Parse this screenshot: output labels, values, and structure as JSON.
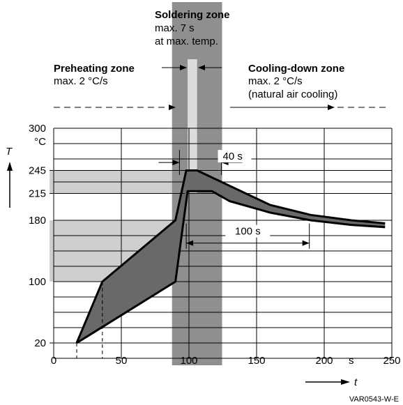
{
  "chart_data": {
    "type": "area",
    "x_axis": {
      "label": "t",
      "unit": "s",
      "range": [
        0,
        250
      ],
      "ticks": [
        "0",
        "50",
        "100",
        "150",
        "200",
        "250"
      ]
    },
    "y_axis": {
      "label": "T",
      "unit": "°C",
      "range": [
        0,
        300
      ],
      "ticks": [
        "20",
        "100",
        "180",
        "215",
        "245",
        "300"
      ]
    },
    "grid": true,
    "zones": [
      {
        "title": "Preheating zone",
        "lines": [
          "max. 2 °C/s"
        ]
      },
      {
        "title": "Soldering zone",
        "lines": [
          "max. 7 s",
          "at max. temp."
        ]
      },
      {
        "title": "Cooling-down zone",
        "lines": [
          "max. 2 °C/s",
          "(natural air cooling)"
        ]
      }
    ],
    "upper_profile": [
      [
        17,
        20
      ],
      [
        36,
        100
      ],
      [
        90,
        180
      ],
      [
        98,
        245
      ],
      [
        106,
        245
      ],
      [
        130,
        225
      ],
      [
        160,
        200
      ],
      [
        190,
        187
      ],
      [
        220,
        180
      ],
      [
        245,
        176
      ]
    ],
    "lower_profile": [
      [
        17,
        20
      ],
      [
        90,
        100
      ],
      [
        99,
        218
      ],
      [
        117,
        218
      ],
      [
        130,
        205
      ],
      [
        160,
        190
      ],
      [
        190,
        180
      ],
      [
        220,
        174
      ],
      [
        245,
        171
      ]
    ],
    "bands": [
      {
        "y_from": 215,
        "y_to": 245,
        "x_from": -3,
        "x_to": 100
      },
      {
        "y_from": 100,
        "y_to": 180,
        "x_from": -3,
        "x_to": 90
      }
    ],
    "annotations": [
      {
        "text": "40 s",
        "x_from": 93,
        "x_to": 124,
        "y": 259
      },
      {
        "text": "100 s",
        "x_from": 98,
        "x_to": 189,
        "y": 163
      }
    ]
  },
  "figure_code": "VAR0543-W-E"
}
